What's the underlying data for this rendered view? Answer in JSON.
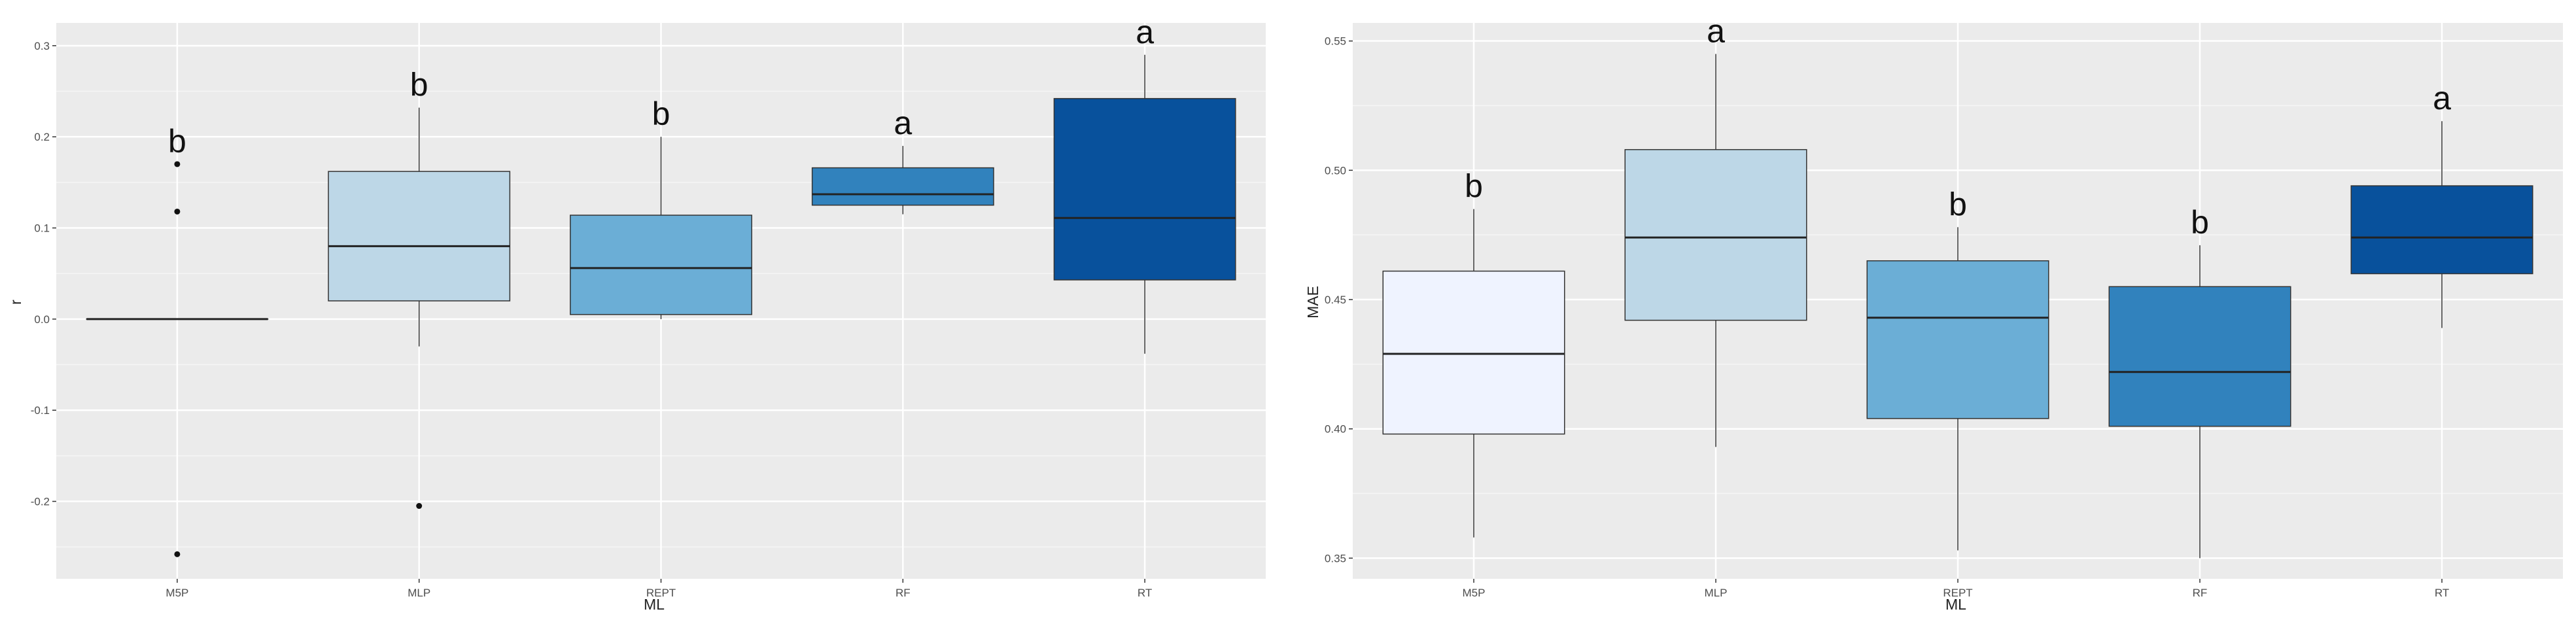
{
  "chart_data": [
    {
      "type": "box",
      "xlabel": "ML",
      "ylabel": "r",
      "ylim": [
        -0.285,
        0.325
      ],
      "yticks": [
        0.3,
        0.2,
        0.1,
        0.0,
        -0.1,
        -0.2
      ],
      "ytick_labels": [
        "0.3",
        "0.2",
        "0.1",
        "0.0",
        "-0.1",
        "-0.2"
      ],
      "grid": true,
      "categories": [
        "M5P",
        "MLP",
        "REPT",
        "RF",
        "RT"
      ],
      "boxes": [
        {
          "category": "M5P",
          "q1": 0.0,
          "median": 0.0,
          "q3": 0.0,
          "whisker_low": 0.0,
          "whisker_high": 0.0,
          "outliers": [
            0.17,
            0.118,
            -0.258
          ],
          "letter": "b",
          "fill": "#eff3ff"
        },
        {
          "category": "MLP",
          "q1": 0.02,
          "median": 0.08,
          "q3": 0.162,
          "whisker_low": -0.03,
          "whisker_high": 0.232,
          "outliers": [
            -0.205
          ],
          "letter": "b",
          "fill": "#bdd7e7"
        },
        {
          "category": "REPT",
          "q1": 0.005,
          "median": 0.056,
          "q3": 0.114,
          "whisker_low": 0.0,
          "whisker_high": 0.2,
          "outliers": [],
          "letter": "b",
          "fill": "#6baed6"
        },
        {
          "category": "RF",
          "q1": 0.125,
          "median": 0.137,
          "q3": 0.166,
          "whisker_low": 0.115,
          "whisker_high": 0.19,
          "outliers": [],
          "letter": "a",
          "fill": "#3182bd"
        },
        {
          "category": "RT",
          "q1": 0.043,
          "median": 0.111,
          "q3": 0.242,
          "whisker_low": -0.038,
          "whisker_high": 0.29,
          "outliers": [],
          "letter": "a",
          "fill": "#08519c"
        }
      ]
    },
    {
      "type": "box",
      "xlabel": "ML",
      "ylabel": "MAE",
      "ylim": [
        0.342,
        0.557
      ],
      "yticks": [
        0.55,
        0.5,
        0.45,
        0.4,
        0.35
      ],
      "ytick_labels": [
        "0.55",
        "0.50",
        "0.45",
        "0.40",
        "0.35"
      ],
      "grid": true,
      "categories": [
        "M5P",
        "MLP",
        "REPT",
        "RF",
        "RT"
      ],
      "boxes": [
        {
          "category": "M5P",
          "q1": 0.398,
          "median": 0.429,
          "q3": 0.461,
          "whisker_low": 0.358,
          "whisker_high": 0.485,
          "outliers": [],
          "letter": "b",
          "fill": "#eff3ff"
        },
        {
          "category": "MLP",
          "q1": 0.442,
          "median": 0.474,
          "q3": 0.508,
          "whisker_low": 0.393,
          "whisker_high": 0.545,
          "outliers": [],
          "letter": "a",
          "fill": "#bdd7e7"
        },
        {
          "category": "REPT",
          "q1": 0.404,
          "median": 0.443,
          "q3": 0.465,
          "whisker_low": 0.353,
          "whisker_high": 0.478,
          "outliers": [],
          "letter": "b",
          "fill": "#6baed6"
        },
        {
          "category": "RF",
          "q1": 0.401,
          "median": 0.422,
          "q3": 0.455,
          "whisker_low": 0.35,
          "whisker_high": 0.471,
          "outliers": [],
          "letter": "b",
          "fill": "#3182bd"
        },
        {
          "category": "RT",
          "q1": 0.46,
          "median": 0.474,
          "q3": 0.494,
          "whisker_low": 0.439,
          "whisker_high": 0.519,
          "outliers": [],
          "letter": "a",
          "fill": "#08519c"
        }
      ]
    }
  ]
}
